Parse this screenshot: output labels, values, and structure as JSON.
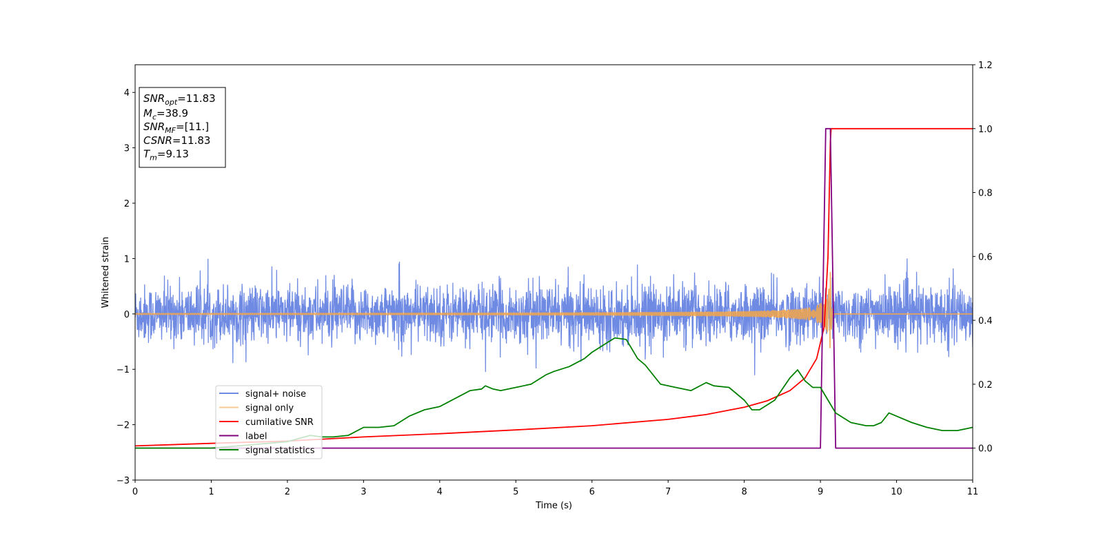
{
  "chart_data": {
    "type": "line",
    "xlabel": "Time (s)",
    "ylabel": "Whitened strain",
    "xlim": [
      0,
      11
    ],
    "ylim_left": [
      -3,
      4.5
    ],
    "ylim_right": [
      -0.1,
      1.2
    ],
    "x_ticks": [
      0,
      1,
      2,
      3,
      4,
      5,
      6,
      7,
      8,
      9,
      10,
      11
    ],
    "y_ticks_left": [
      -3,
      -2,
      -1,
      0,
      1,
      2,
      3,
      4
    ],
    "y_ticks_left_labels": [
      "−3",
      "−2",
      "−1",
      "0",
      "1",
      "2",
      "3",
      "4"
    ],
    "y_ticks_right": [
      0.0,
      0.2,
      0.4,
      0.6,
      0.8,
      1.0,
      1.2
    ],
    "y_ticks_right_labels": [
      "0.0",
      "0.2",
      "0.4",
      "0.6",
      "0.8",
      "1.0",
      "1.2"
    ],
    "grid": false,
    "legend_position": "lower-left",
    "info_box": [
      {
        "main": "SNR",
        "sub": "opt",
        "value": "=11.83"
      },
      {
        "main": "M",
        "sub": "c",
        "value": "=38.9"
      },
      {
        "main": "SNR",
        "sub": "MF",
        "value": "=[11.]"
      },
      {
        "main": "CSNR",
        "sub": "",
        "value": "=11.83"
      },
      {
        "main": "T",
        "sub": "m",
        "value": "=9.13"
      }
    ],
    "series": [
      {
        "name": "signal+ noise",
        "axis": "left",
        "color": "#6f8ae3",
        "kind": "noise",
        "noise_amplitude_sd": 0.26,
        "value_range": [
          -1.1,
          1.3
        ]
      },
      {
        "name": "signal only",
        "axis": "left",
        "color": "#f5a64a",
        "kind": "chirp",
        "merger_time": 9.13,
        "peak_amplitude": 0.75
      },
      {
        "name": "cumilative SNR",
        "axis": "right",
        "color": "#ff0000",
        "x": [
          0,
          1,
          2,
          3,
          4,
          5,
          6,
          7,
          7.5,
          8,
          8.3,
          8.6,
          8.8,
          8.95,
          9.05,
          9.1,
          9.13,
          9.14,
          11
        ],
        "y": [
          0.007,
          0.015,
          0.022,
          0.035,
          0.045,
          0.057,
          0.07,
          0.09,
          0.105,
          0.128,
          0.148,
          0.18,
          0.22,
          0.28,
          0.38,
          0.6,
          0.96,
          1.0,
          1.0
        ]
      },
      {
        "name": "label",
        "axis": "right",
        "color": "#800080",
        "x": [
          0,
          9.0,
          9.07,
          9.13,
          9.2,
          11
        ],
        "y": [
          0,
          0,
          1,
          1,
          0,
          0
        ]
      },
      {
        "name": "signal statistics",
        "axis": "right",
        "color": "#008000",
        "x": [
          0,
          0.5,
          1.0,
          1.5,
          2.0,
          2.3,
          2.45,
          2.6,
          2.8,
          3.0,
          3.2,
          3.4,
          3.6,
          3.8,
          4.0,
          4.2,
          4.4,
          4.55,
          4.6,
          4.7,
          4.8,
          5.0,
          5.2,
          5.4,
          5.5,
          5.7,
          5.9,
          6.0,
          6.2,
          6.3,
          6.45,
          6.6,
          6.7,
          6.9,
          7.1,
          7.3,
          7.5,
          7.6,
          7.8,
          8.0,
          8.1,
          8.2,
          8.4,
          8.6,
          8.7,
          8.8,
          8.9,
          9.0,
          9.1,
          9.2,
          9.4,
          9.6,
          9.7,
          9.8,
          9.9,
          10.0,
          10.2,
          10.4,
          10.6,
          10.8,
          11.0
        ],
        "y": [
          0.0,
          0.0,
          0.0,
          0.01,
          0.02,
          0.04,
          0.035,
          0.035,
          0.04,
          0.065,
          0.065,
          0.07,
          0.1,
          0.12,
          0.13,
          0.155,
          0.18,
          0.185,
          0.195,
          0.185,
          0.18,
          0.19,
          0.2,
          0.23,
          0.24,
          0.255,
          0.28,
          0.3,
          0.33,
          0.345,
          0.34,
          0.28,
          0.26,
          0.2,
          0.19,
          0.18,
          0.205,
          0.195,
          0.19,
          0.15,
          0.12,
          0.12,
          0.15,
          0.22,
          0.245,
          0.21,
          0.19,
          0.19,
          0.15,
          0.11,
          0.08,
          0.07,
          0.07,
          0.08,
          0.11,
          0.1,
          0.08,
          0.065,
          0.055,
          0.055,
          0.065
        ]
      }
    ]
  }
}
